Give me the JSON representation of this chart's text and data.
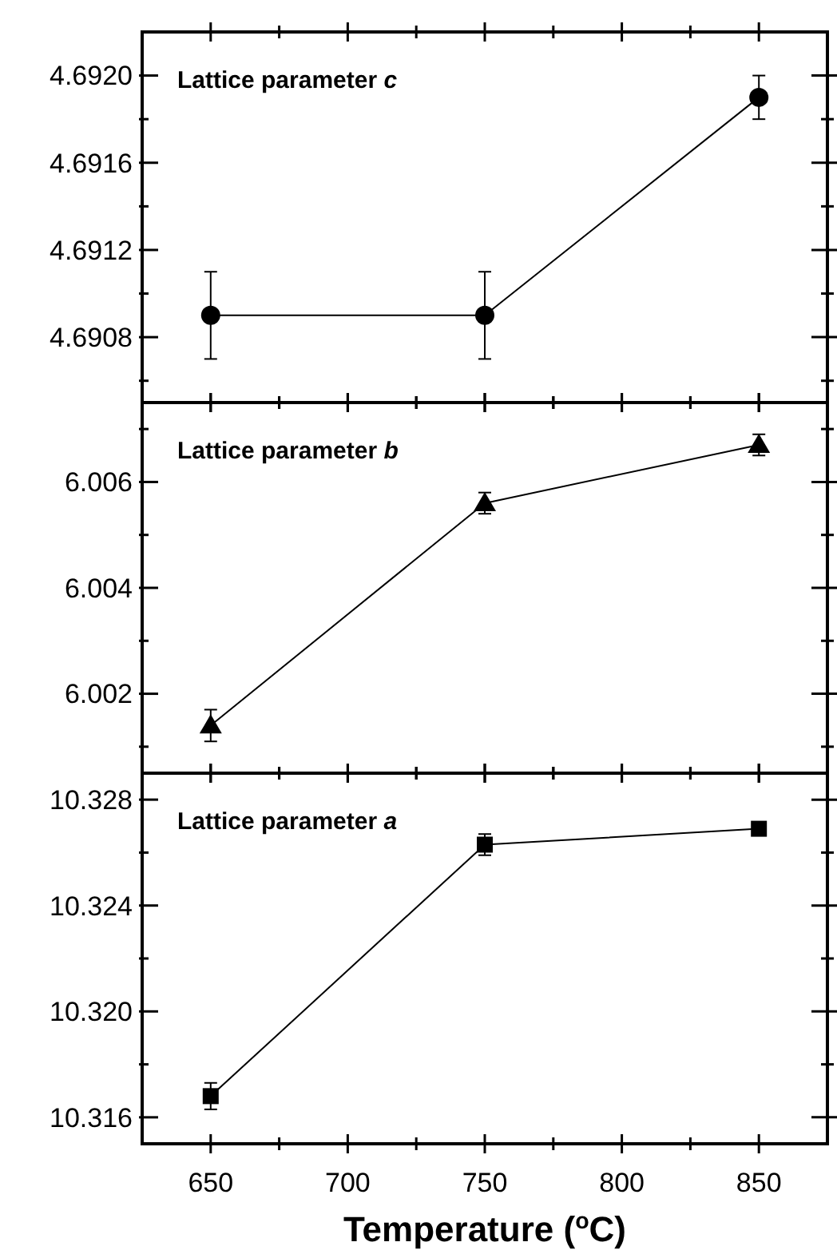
{
  "chart_data": [
    {
      "type": "line",
      "x": [
        650,
        750,
        850
      ],
      "values": [
        4.6909,
        4.6909,
        4.6919
      ],
      "errors": [
        0.0002,
        0.0002,
        0.0001
      ],
      "color": "#000000",
      "marker": "circle",
      "xlim": [
        625,
        875
      ],
      "xticks": [
        650,
        {
          "value": 675,
          "label": null
        },
        700,
        {
          "value": 725,
          "label": null
        },
        750,
        {
          "value": 775,
          "label": null
        },
        800,
        {
          "value": 825,
          "label": null
        },
        850
      ],
      "ylim": [
        4.6905,
        4.6922
      ],
      "yticks": [
        {
          "value": 4.6906,
          "label": null
        },
        {
          "value": 4.6908,
          "label": "4.6908"
        },
        {
          "value": 4.691,
          "label": null
        },
        {
          "value": 4.6912,
          "label": "4.6912"
        },
        {
          "value": 4.6914,
          "label": null
        },
        {
          "value": 4.6916,
          "label": "4.6916"
        },
        {
          "value": 4.6918,
          "label": null
        },
        {
          "value": 4.692,
          "label": "4.6920"
        }
      ],
      "tick_labels": "y",
      "annotations": [
        "Lattice parameter c"
      ]
    },
    {
      "type": "line",
      "x": [
        650,
        750,
        850
      ],
      "values": [
        6.0014,
        6.0056,
        6.0067
      ],
      "errors": [
        0.0003,
        0.0002,
        0.0002
      ],
      "color": "#000000",
      "marker": "triangle",
      "xlim": [
        625,
        875
      ],
      "xticks": [
        650,
        {
          "value": 675,
          "label": null
        },
        700,
        {
          "value": 725,
          "label": null
        },
        750,
        {
          "value": 775,
          "label": null
        },
        800,
        {
          "value": 825,
          "label": null
        },
        850
      ],
      "ylim": [
        6.0005,
        6.0075
      ],
      "yticks": [
        {
          "value": 6.001,
          "label": null
        },
        6.002,
        {
          "value": 6.003,
          "label": null
        },
        6.004,
        {
          "value": 6.005,
          "label": null
        },
        6.006,
        {
          "value": 6.007,
          "label": null
        }
      ],
      "tick_labels": "y",
      "annotations": [
        "Lattice parameter b"
      ]
    },
    {
      "type": "line",
      "x": [
        650,
        750,
        850
      ],
      "values": [
        10.3168,
        10.3263,
        10.3269
      ],
      "errors": [
        0.0005,
        0.0004,
        0.0002
      ],
      "color": "#000000",
      "marker": "square",
      "xlim": [
        625,
        875
      ],
      "xticks": [
        650,
        {
          "value": 675,
          "label": null
        },
        700,
        {
          "value": 725,
          "label": null
        },
        750,
        {
          "value": 775,
          "label": null
        },
        800,
        {
          "value": 825,
          "label": null
        },
        850
      ],
      "ylim": [
        10.315,
        10.329
      ],
      "yticks": [
        10.316,
        {
          "value": 10.318,
          "label": null
        },
        {
          "value": 10.32,
          "label": "10.320"
        },
        {
          "value": 10.322,
          "label": null
        },
        10.324,
        {
          "value": 10.326,
          "label": null
        },
        10.328
      ],
      "xlabel": "Temperature ($^{o}$C)",
      "annotations": [
        "Lattice parameter a"
      ]
    }
  ]
}
